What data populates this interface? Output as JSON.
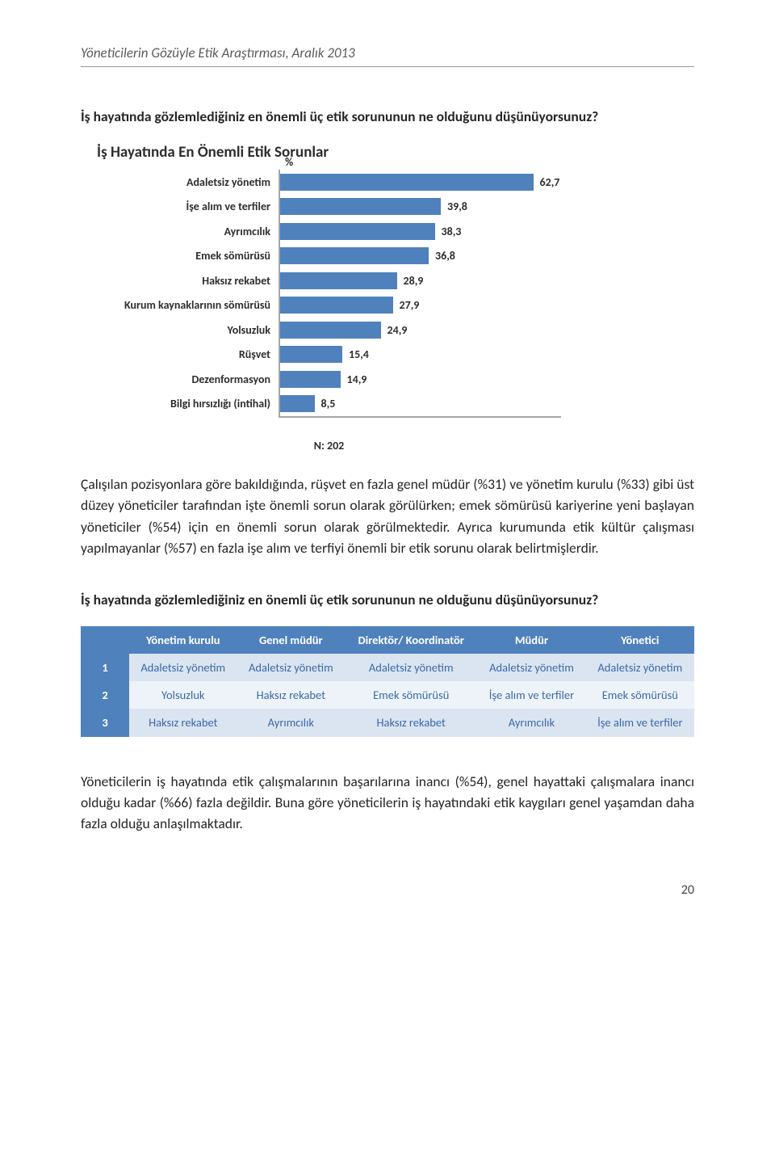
{
  "running_head": "Yöneticilerin Gözüyle Etik Araştırması, Aralık 2013",
  "question": "İş hayatında gözlemlediğiniz en önemli üç etik sorununun ne olduğunu düşünüyorsunuz?",
  "chart": {
    "title": "İş Hayatında En Önemli Etik Sorunlar",
    "pct_symbol": "%",
    "categories": [
      "Adaletsiz yönetim",
      "İşe alım ve terfiler",
      "Ayrımcılık",
      "Emek sömürüsü",
      "Haksız rekabet",
      "Kurum kaynaklarının sömürüsü",
      "Yolsuzluk",
      "Rüşvet",
      "Dezenformasyon",
      "Bilgi hırsızlığı (intihal)"
    ],
    "values": [
      "62,7",
      "39,8",
      "38,3",
      "36,8",
      "28,9",
      "27,9",
      "24,9",
      "15,4",
      "14,9",
      "8,5"
    ],
    "values_num": [
      62.7,
      39.8,
      38.3,
      36.8,
      28.9,
      27.9,
      24.9,
      15.4,
      14.9,
      8.5
    ],
    "xmax": 70,
    "bar_color": "#4f81bd",
    "n_label": "N: 202"
  },
  "paragraph1": "Çalışılan pozisyonlara göre bakıldığında, rüşvet en fazla genel müdür (%31) ve yönetim kurulu (%33) gibi üst düzey yöneticiler tarafından işte önemli sorun olarak görülürken; emek sömürüsü kariyerine yeni başlayan yöneticiler (%54) için en önemli sorun olarak görülmektedir. Ayrıca kurumunda etik kültür çalışması yapılmayanlar (%57) en fazla işe alım ve terfiyi önemli bir etik sorunu olarak belirtmişlerdir.",
  "question2": "İş hayatında gözlemlediğiniz en önemli üç etik sorununun ne olduğunu düşünüyorsunuz?",
  "table": {
    "header_bg": "#4f81bd",
    "rownum_bg": "#4f81bd",
    "light_bg": "#dbe5f1",
    "lighter_bg": "#eef3f9",
    "columns": [
      "",
      "Yönetim kurulu",
      "Genel müdür",
      "Direktör/ Koordinatör",
      "Müdür",
      "Yönetici"
    ],
    "rows": [
      {
        "num": "1",
        "cells": [
          "Adaletsiz yönetim",
          "Adaletsiz yönetim",
          "Adaletsiz yönetim",
          "Adaletsiz yönetim",
          "Adaletsiz yönetim"
        ]
      },
      {
        "num": "2",
        "cells": [
          "Yolsuzluk",
          "Haksız rekabet",
          "Emek sömürüsü",
          "İşe alım ve terfiler",
          "Emek sömürüsü"
        ]
      },
      {
        "num": "3",
        "cells": [
          "Haksız rekabet",
          "Ayrımcılık",
          "Haksız rekabet",
          "Ayrımcılık",
          "İşe alım ve terfiler"
        ]
      }
    ]
  },
  "paragraph2": "Yöneticilerin iş hayatında etik çalışmalarının başarılarına inancı (%54), genel hayattaki çalışmalara inancı olduğu kadar (%66) fazla değildir. Buna göre yöneticilerin iş hayatındaki etik kaygıları genel yaşamdan daha fazla olduğu anlaşılmaktadır.",
  "page_number": "20"
}
